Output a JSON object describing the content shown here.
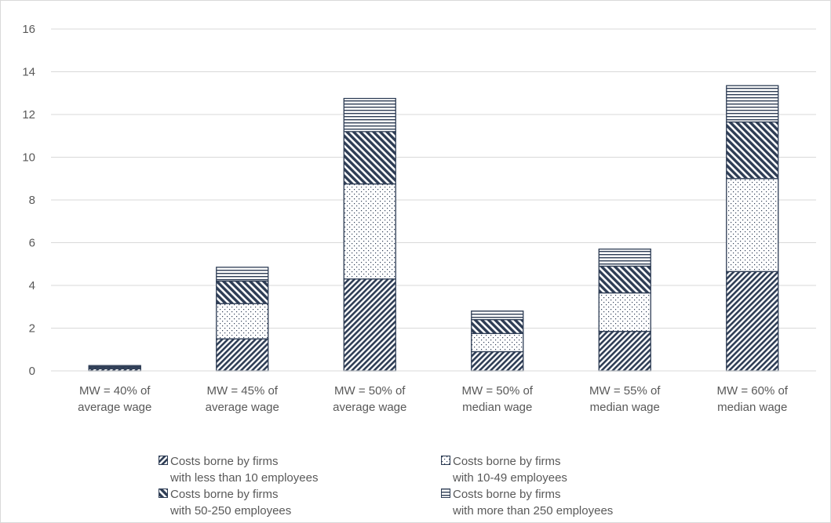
{
  "chart_data": {
    "type": "bar",
    "stacked": true,
    "categories": [
      [
        "MW = 40% of",
        "average wage"
      ],
      [
        "MW = 45% of",
        "average wage"
      ],
      [
        "MW = 50% of",
        "average wage"
      ],
      [
        "MW = 50% of",
        "median wage"
      ],
      [
        "MW = 55% of",
        "median wage"
      ],
      [
        "MW = 60% of",
        "median wage"
      ]
    ],
    "series": [
      {
        "name": "Costs borne by firms\nwith less than 10 employees",
        "pattern": "diagonal-dense",
        "values": [
          0.1,
          1.5,
          4.3,
          0.9,
          1.85,
          4.65
        ]
      },
      {
        "name": "Costs borne by firms\nwith 10-49 employees",
        "pattern": "dots",
        "values": [
          0.05,
          1.65,
          4.45,
          0.85,
          1.8,
          4.35
        ]
      },
      {
        "name": "Costs borne by firms\nwith 50-250 employees",
        "pattern": "diagonal-wide",
        "values": [
          0.05,
          1.05,
          2.45,
          0.65,
          1.25,
          2.65
        ]
      },
      {
        "name": "Costs borne by firms\nwith more than 250 employees",
        "pattern": "horizontal",
        "values": [
          0.05,
          0.65,
          1.55,
          0.4,
          0.8,
          1.7
        ]
      }
    ],
    "yticks": [
      "0",
      "2",
      "4",
      "6",
      "8",
      "10",
      "12",
      "14",
      "16"
    ],
    "ylim": [
      0,
      16
    ],
    "grid": true,
    "legend_position": "bottom",
    "colors": {
      "bar_stroke": "#2e3d55",
      "grid": "#d9d9d9",
      "text": "#595959",
      "background": "#ffffff"
    }
  }
}
